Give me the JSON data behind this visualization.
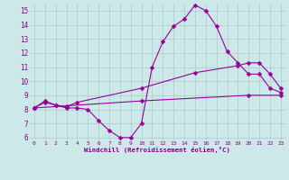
{
  "bg_color": "#cce8e8",
  "line_color": "#990099",
  "grid_color": "#aacccc",
  "xlabel": "Windchill (Refroidissement éolien,°C)",
  "xlabel_color": "#880088",
  "tick_color": "#880088",
  "xlim": [
    -0.5,
    23.5
  ],
  "ylim": [
    5.8,
    15.5
  ],
  "yticks": [
    6,
    7,
    8,
    9,
    10,
    11,
    12,
    13,
    14,
    15
  ],
  "xticks": [
    0,
    1,
    2,
    3,
    4,
    5,
    6,
    7,
    8,
    9,
    10,
    11,
    12,
    13,
    14,
    15,
    16,
    17,
    18,
    19,
    20,
    21,
    22,
    23
  ],
  "line1_x": [
    0,
    1,
    2,
    3,
    4,
    5,
    6,
    7,
    8,
    9,
    10,
    11,
    12,
    13,
    14,
    15,
    16,
    17,
    18,
    19,
    20,
    21,
    22,
    23
  ],
  "line1_y": [
    8.1,
    8.6,
    8.3,
    8.1,
    8.1,
    8.0,
    7.2,
    6.5,
    6.0,
    6.0,
    7.0,
    11.0,
    12.8,
    13.9,
    14.4,
    15.4,
    15.0,
    13.9,
    12.1,
    11.3,
    10.5,
    10.5,
    9.5,
    9.2
  ],
  "line2_x": [
    0,
    1,
    2,
    3,
    4,
    10,
    15,
    19,
    20,
    21,
    22,
    23
  ],
  "line2_y": [
    8.1,
    8.5,
    8.3,
    8.2,
    8.5,
    9.5,
    10.6,
    11.1,
    11.3,
    11.3,
    10.5,
    9.5
  ],
  "line3_x": [
    0,
    10,
    20,
    23
  ],
  "line3_y": [
    8.1,
    8.6,
    9.0,
    9.0
  ]
}
